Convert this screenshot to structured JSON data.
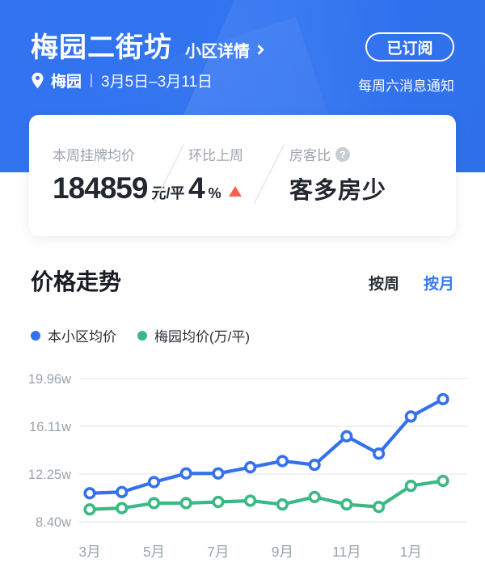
{
  "header": {
    "title": "梅园二街坊",
    "detail_label": "小区详情",
    "subscribe_label": "已订阅",
    "location": "梅园",
    "date_range": "3月5日–3月11日",
    "notify_text": "每周六消息通知"
  },
  "stats": {
    "listing_price": {
      "label": "本周挂牌均价",
      "value": "184859",
      "unit": "元/平"
    },
    "week_change": {
      "label": "环比上周",
      "value": "4",
      "unit": "%",
      "direction": "up"
    },
    "supply_demand": {
      "label": "房客比",
      "help_icon": "?",
      "value": "客多房少"
    }
  },
  "trend": {
    "title": "价格走势",
    "tabs": [
      {
        "label": "按周",
        "active": false
      },
      {
        "label": "按月",
        "active": true
      }
    ],
    "legend": [
      {
        "label": "本小区均价",
        "color": "#3471ec"
      },
      {
        "label": "梅园均价(万/平)",
        "color": "#3bb985"
      }
    ]
  },
  "chart_data": {
    "type": "line",
    "x": [
      "3月",
      "4月",
      "5月",
      "6月",
      "7月",
      "8月",
      "9月",
      "10月",
      "11月",
      "12月",
      "1月",
      "2月"
    ],
    "x_label_every": 2,
    "series": [
      {
        "name": "本小区均价",
        "color": "#3471ec",
        "values": [
          10.7,
          10.8,
          11.6,
          12.3,
          12.3,
          12.8,
          13.3,
          13.0,
          15.3,
          13.9,
          16.9,
          18.3
        ]
      },
      {
        "name": "梅园均价",
        "color": "#3bb985",
        "values": [
          9.4,
          9.5,
          9.9,
          9.9,
          10.0,
          10.1,
          9.8,
          10.4,
          9.8,
          9.6,
          11.3,
          11.7
        ]
      }
    ],
    "y_ticks": [
      8.4,
      12.25,
      16.11,
      19.96
    ],
    "y_tick_labels": [
      "8.40w",
      "12.25w",
      "16.11w",
      "19.96w"
    ],
    "unit": "万/平",
    "ylim": [
      8.4,
      19.96
    ],
    "grid": true,
    "legend_position": "top-left"
  },
  "colors": {
    "header_blue": "#3174f1",
    "accent_blue": "#3678f6",
    "line_blue": "#3471ec",
    "line_green": "#3bb985",
    "up_red": "#f9604a",
    "label_gray": "#9ca3ac",
    "text_dark": "#23272f",
    "gridline": "#f0f1f4"
  }
}
